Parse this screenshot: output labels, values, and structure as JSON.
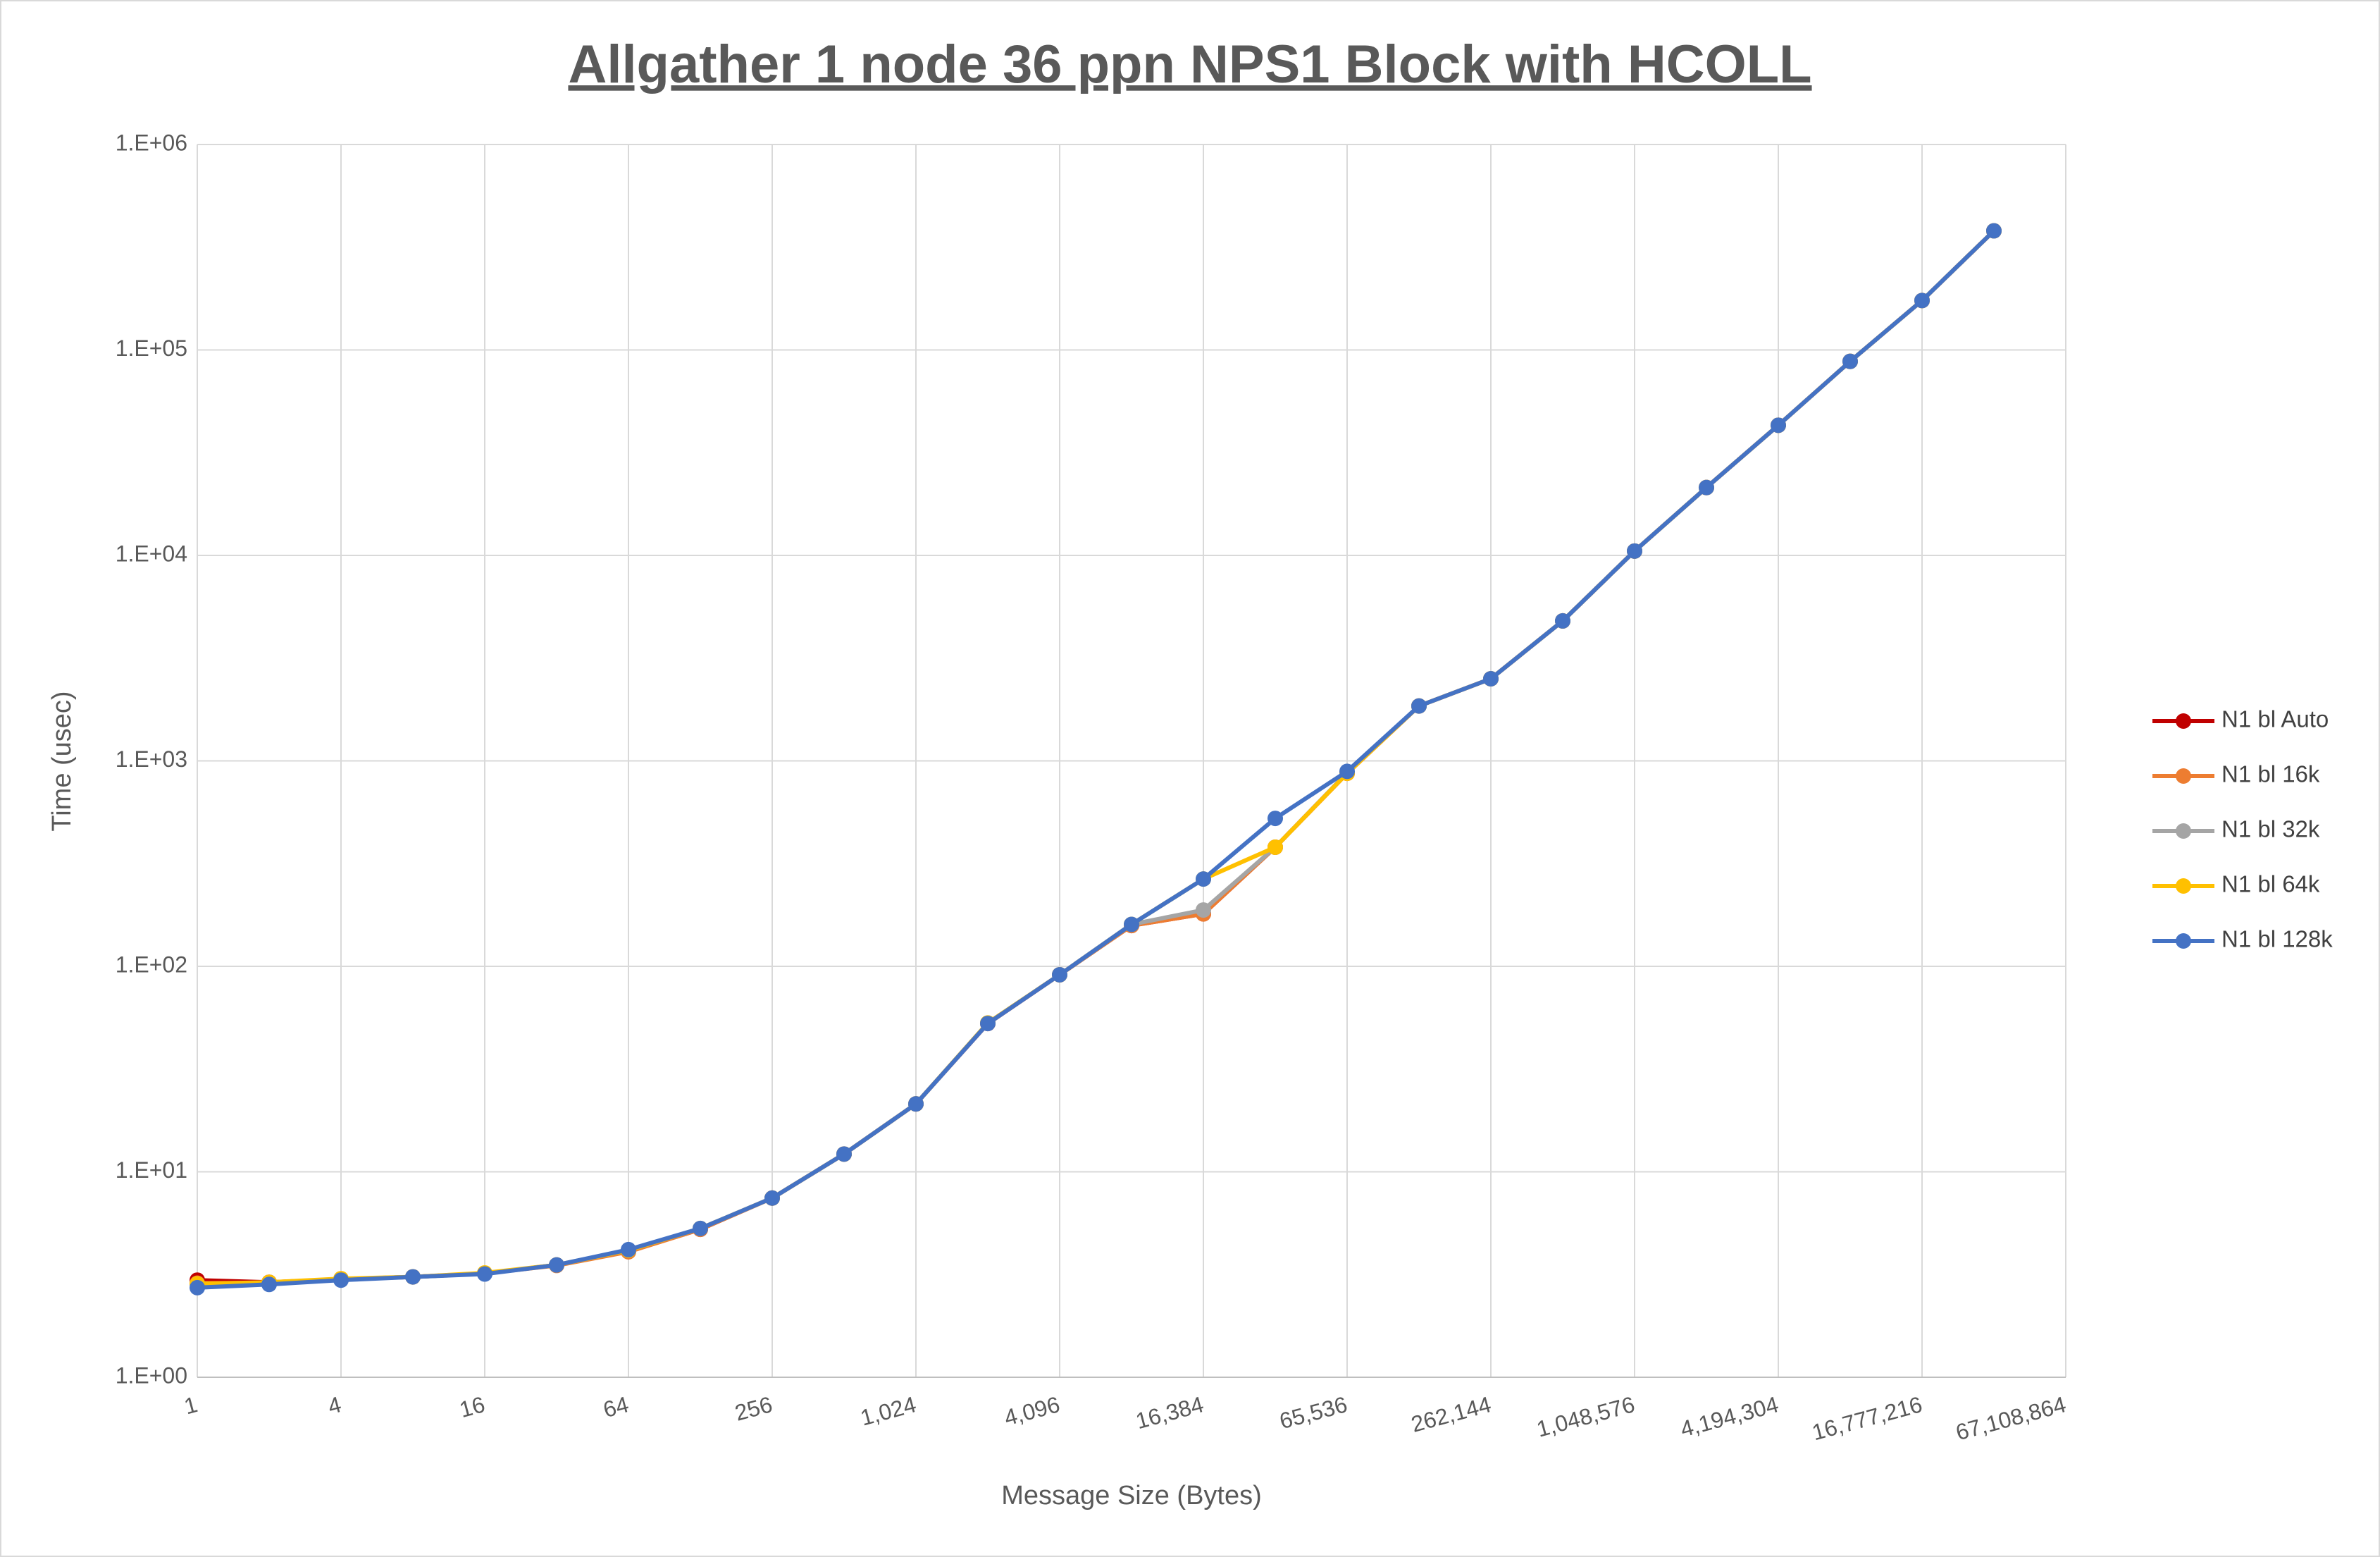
{
  "chart_data": {
    "type": "line",
    "title": "Allgather 1 node 36 ppn NPS1 Block with HCOLL",
    "x_label": "Message Size (Bytes)",
    "y_label": "Time (usec)",
    "x": [
      1,
      2,
      4,
      8,
      16,
      32,
      64,
      128,
      256,
      512,
      1024,
      2048,
      4096,
      8192,
      16384,
      32768,
      65536,
      131072,
      262144,
      524288,
      1048576,
      2097152,
      4194304,
      8388608,
      16777216,
      33554432
    ],
    "xlim": [
      1,
      67108864
    ],
    "xticks": [
      1,
      4,
      16,
      64,
      256,
      {
        "value": 1024,
        "label": "1,024"
      },
      {
        "value": 4096,
        "label": "4,096"
      },
      {
        "value": 16384,
        "label": "16,384"
      },
      {
        "value": 65536,
        "label": "65,536"
      },
      {
        "value": 262144,
        "label": "262,144"
      },
      {
        "value": 1048576,
        "label": "1,048,576"
      },
      {
        "value": 4194304,
        "label": "4,194,304"
      },
      {
        "value": 16777216,
        "label": "16,777,216"
      },
      {
        "value": 67108864,
        "label": "67,108,864"
      }
    ],
    "x_scale": "log",
    "ylim": [
      1,
      1000000
    ],
    "yticks": [
      {
        "value": 1,
        "label": "1.E+00"
      },
      {
        "value": 10,
        "label": "1.E+01"
      },
      {
        "value": 100,
        "label": "1.E+02"
      },
      {
        "value": 1000,
        "label": "1.E+03"
      },
      {
        "value": 10000,
        "label": "1.E+04"
      },
      {
        "value": 100000,
        "label": "1.E+05"
      },
      {
        "value": 1000000,
        "label": "1.E+06"
      }
    ],
    "y_scale": "log",
    "grid": true,
    "legend": "right",
    "series": [
      {
        "name": "N1 bl Auto",
        "color": "#c00000",
        "values": [
          2.97,
          2.9,
          3.0,
          3.08,
          3.2,
          3.52,
          4.1,
          5.25,
          7.45,
          12.2,
          21.4,
          52.7,
          91,
          158,
          180,
          380,
          870,
          1850,
          2510,
          4800,
          10500,
          21400,
          43000,
          88000,
          174000,
          380000
        ]
      },
      {
        "name": "N1 bl 16k",
        "color": "#ed7d31",
        "values": [
          2.87,
          2.88,
          3.0,
          3.08,
          3.2,
          3.5,
          4.08,
          5.25,
          7.45,
          12.2,
          21.4,
          52.7,
          91,
          158,
          180,
          380,
          870,
          1850,
          2510,
          4800,
          10500,
          21400,
          43000,
          88000,
          174000,
          380000
        ]
      },
      {
        "name": "N1 bl 32k",
        "color": "#a5a5a5",
        "values": [
          2.85,
          2.88,
          3.0,
          3.08,
          3.2,
          3.52,
          4.15,
          5.3,
          7.45,
          12.2,
          21.4,
          53,
          91,
          160,
          188,
          380,
          875,
          1850,
          2510,
          4800,
          10500,
          21400,
          43000,
          88000,
          174000,
          380000
        ]
      },
      {
        "name": "N1 bl 64k",
        "color": "#ffc000",
        "values": [
          2.85,
          2.9,
          3.02,
          3.08,
          3.22,
          3.52,
          4.15,
          5.3,
          7.45,
          12.2,
          21.4,
          53,
          91,
          160,
          266,
          380,
          870,
          1850,
          2510,
          4800,
          10500,
          21400,
          43000,
          88000,
          174000,
          380000
        ]
      },
      {
        "name": "N1 bl 128k",
        "color": "#4472c4",
        "values": [
          2.73,
          2.83,
          2.97,
          3.08,
          3.18,
          3.52,
          4.18,
          5.3,
          7.45,
          12.2,
          21.4,
          52.7,
          91,
          160,
          266,
          525,
          889,
          1850,
          2510,
          4800,
          10500,
          21400,
          43000,
          88000,
          174000,
          380000
        ]
      }
    ]
  }
}
